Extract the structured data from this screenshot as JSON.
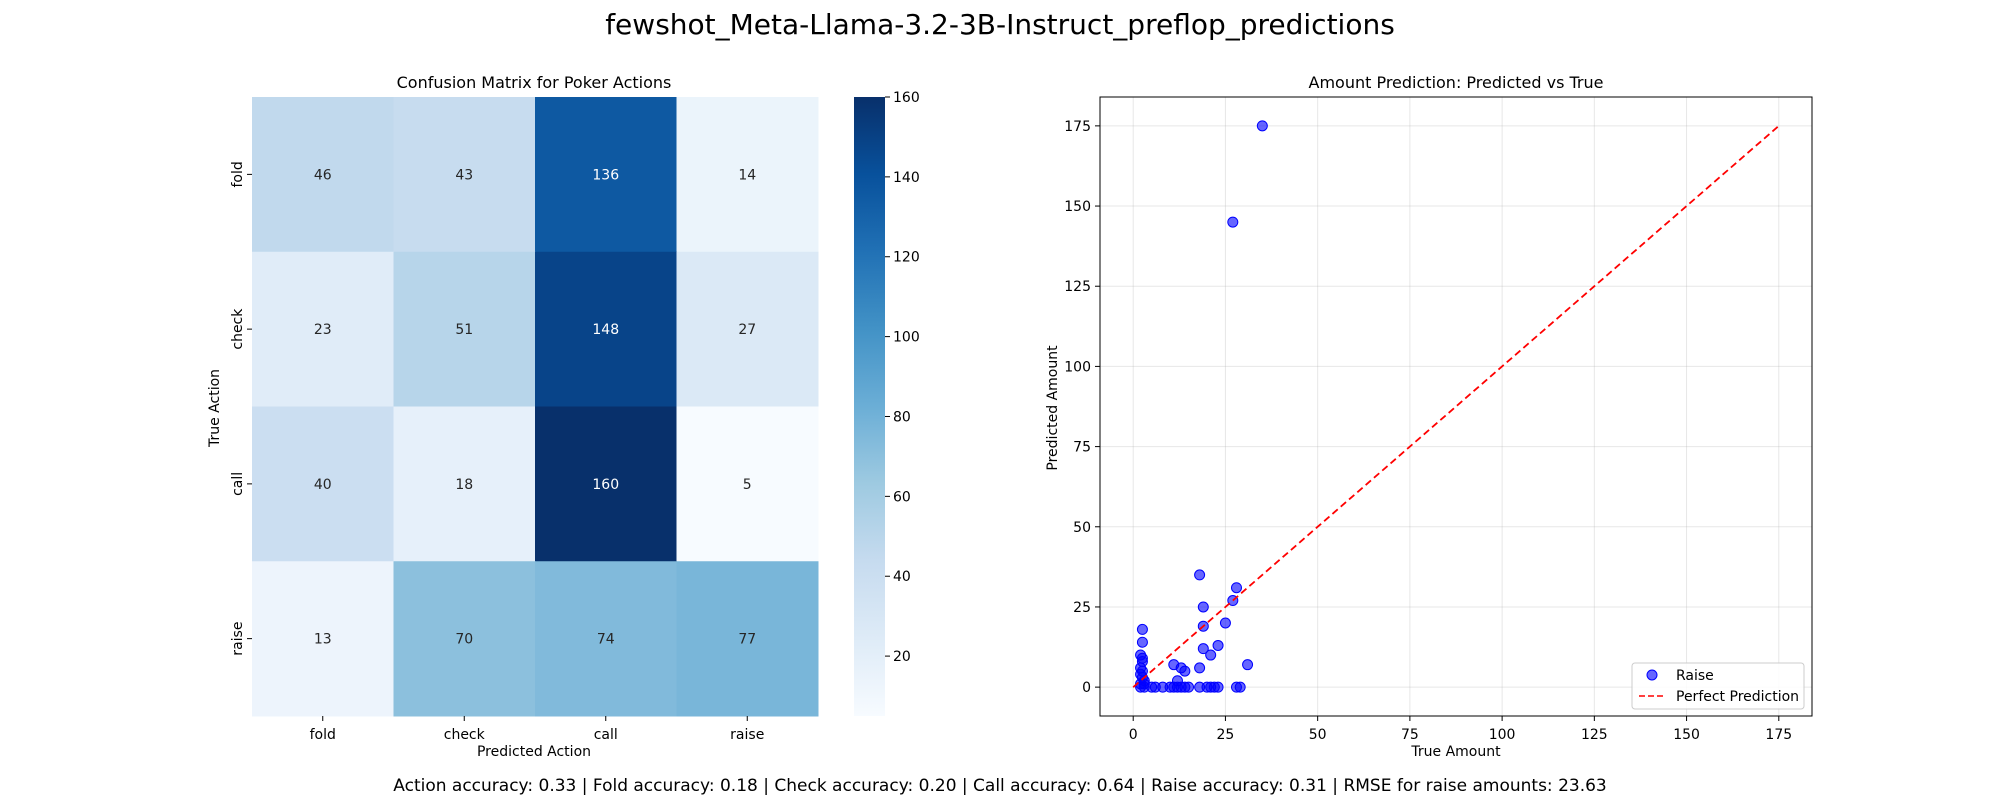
{
  "figure": {
    "title": "fewshot_Meta-Llama-3.2-3B-Instruct_preflop_predictions",
    "footer": "Action accuracy: 0.33 | Fold accuracy: 0.18 | Check accuracy: 0.20 | Call accuracy: 0.64 | Raise accuracy: 0.31 | RMSE for raise amounts: 23.63"
  },
  "chart_data": [
    {
      "type": "heatmap",
      "title": "Confusion Matrix for Poker Actions",
      "xlabel": "Predicted Action",
      "ylabel": "True Action",
      "x_categories": [
        "fold",
        "check",
        "call",
        "raise"
      ],
      "y_categories": [
        "fold",
        "check",
        "call",
        "raise"
      ],
      "values": [
        [
          46,
          43,
          136,
          14
        ],
        [
          23,
          51,
          148,
          27
        ],
        [
          40,
          18,
          160,
          5
        ],
        [
          13,
          70,
          74,
          77
        ]
      ],
      "colormap": "Blues",
      "colorbar": {
        "min": 5,
        "max": 160,
        "ticks": [
          20,
          40,
          60,
          80,
          100,
          120,
          140,
          160
        ]
      }
    },
    {
      "type": "scatter",
      "title": "Amount Prediction: Predicted vs True",
      "xlabel": "True Amount",
      "ylabel": "Predicted Amount",
      "xlim": [
        -9,
        184
      ],
      "ylim": [
        -9,
        184
      ],
      "xticks": [
        0,
        25,
        50,
        75,
        100,
        125,
        150,
        175
      ],
      "yticks": [
        0,
        25,
        50,
        75,
        100,
        125,
        150,
        175
      ],
      "grid": true,
      "legend_position": "bottom-right",
      "series": [
        {
          "name": "Raise",
          "kind": "points",
          "color": "#0000ff",
          "points": [
            [
              35,
              175
            ],
            [
              27,
              145
            ],
            [
              18,
              35
            ],
            [
              28,
              31
            ],
            [
              27,
              27
            ],
            [
              19,
              25
            ],
            [
              25,
              20
            ],
            [
              19,
              19
            ],
            [
              2.5,
              18
            ],
            [
              2.5,
              14
            ],
            [
              23,
              13
            ],
            [
              19,
              12
            ],
            [
              21,
              10
            ],
            [
              2,
              10
            ],
            [
              2.5,
              9
            ],
            [
              2.5,
              8
            ],
            [
              11,
              7
            ],
            [
              31,
              7
            ],
            [
              2,
              6
            ],
            [
              13,
              6
            ],
            [
              18,
              6
            ],
            [
              14,
              5
            ],
            [
              2.5,
              5
            ],
            [
              2,
              4
            ],
            [
              2.5,
              3
            ],
            [
              3,
              2
            ],
            [
              12,
              2
            ],
            [
              2,
              1
            ],
            [
              3,
              1
            ],
            [
              2,
              0
            ],
            [
              3,
              0
            ],
            [
              5,
              0
            ],
            [
              6,
              0
            ],
            [
              8,
              0
            ],
            [
              10,
              0
            ],
            [
              11,
              0
            ],
            [
              12,
              0
            ],
            [
              13,
              0
            ],
            [
              14,
              0
            ],
            [
              15,
              0
            ],
            [
              18,
              0
            ],
            [
              20,
              0
            ],
            [
              21,
              0
            ],
            [
              22,
              0
            ],
            [
              23,
              0
            ],
            [
              28,
              0
            ],
            [
              29,
              0
            ]
          ]
        },
        {
          "name": "Perfect Prediction",
          "kind": "line",
          "color": "#ff0000",
          "dash": true,
          "x": [
            0,
            175
          ],
          "y": [
            0,
            175
          ]
        }
      ]
    }
  ]
}
